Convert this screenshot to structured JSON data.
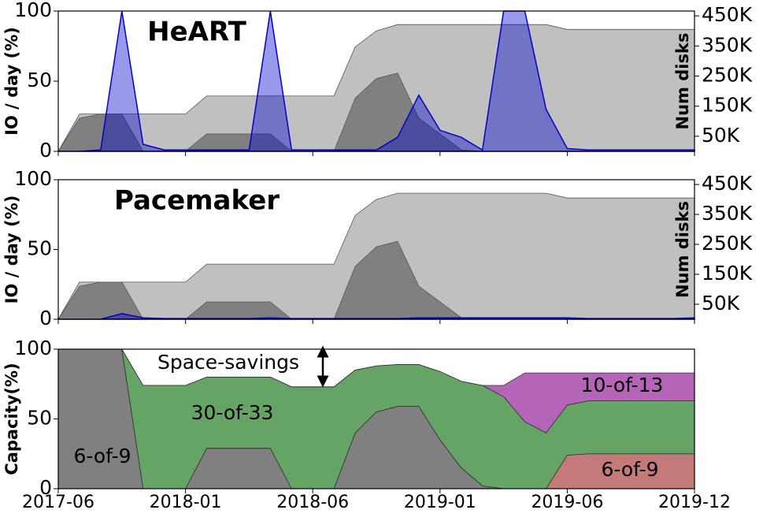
{
  "chart_data": [
    {
      "type": "area",
      "title": "HeART",
      "ylabel": "IO / day (%)",
      "y2label": "Num disks",
      "ylim": [
        0,
        100
      ],
      "yticks": [
        0,
        50,
        100
      ],
      "y2lim": [
        0,
        466000
      ],
      "y2ticks": [
        {
          "value": 50000,
          "label": "50K"
        },
        {
          "value": 150000,
          "label": "150K"
        },
        {
          "value": 250000,
          "label": "250K"
        },
        {
          "value": 350000,
          "label": "350K"
        },
        {
          "value": 450000,
          "label": "450K"
        }
      ],
      "series": [
        {
          "color": "#c0c0c0",
          "axis": "y2",
          "values": [
            0,
            124000,
            124000,
            124000,
            124000,
            124000,
            124000,
            184000,
            184000,
            184000,
            184000,
            184000,
            184000,
            184000,
            347000,
            400000,
            421000,
            421000,
            421000,
            421000,
            421000,
            421000,
            421000,
            421000,
            405000,
            405000,
            405000,
            405000,
            405000,
            405000,
            405000
          ]
        },
        {
          "color": "#808080",
          "axis": "y2",
          "values": [
            0,
            110000,
            124000,
            124000,
            0,
            0,
            0,
            58000,
            58000,
            58000,
            58000,
            0,
            0,
            0,
            176000,
            242000,
            260000,
            110000,
            58000,
            5000,
            0,
            0,
            0,
            0,
            0,
            0,
            0,
            0,
            0,
            0,
            0
          ]
        },
        {
          "color": "#0000cc",
          "values": [
            0,
            0,
            1,
            100,
            5,
            1,
            1,
            1,
            1,
            1,
            100,
            1,
            1,
            1,
            1,
            1,
            10,
            40,
            15,
            10,
            1,
            100,
            100,
            30,
            2,
            1,
            1,
            1,
            1,
            1,
            1
          ]
        }
      ]
    },
    {
      "type": "area",
      "title": "Pacemaker",
      "ylabel": "IO / day (%)",
      "y2label": "Num disks",
      "ylim": [
        0,
        100
      ],
      "yticks": [
        0,
        50,
        100
      ],
      "y2lim": [
        0,
        466000
      ],
      "y2ticks": [
        {
          "value": 50000,
          "label": "50K"
        },
        {
          "value": 150000,
          "label": "150K"
        },
        {
          "value": 250000,
          "label": "250K"
        },
        {
          "value": 350000,
          "label": "350K"
        },
        {
          "value": 450000,
          "label": "450K"
        }
      ],
      "series": [
        {
          "color": "#c0c0c0",
          "axis": "y2",
          "values": [
            0,
            124000,
            124000,
            124000,
            124000,
            124000,
            124000,
            184000,
            184000,
            184000,
            184000,
            184000,
            184000,
            184000,
            347000,
            400000,
            421000,
            421000,
            421000,
            421000,
            421000,
            421000,
            421000,
            421000,
            405000,
            405000,
            405000,
            405000,
            405000,
            405000,
            405000
          ]
        },
        {
          "color": "#808080",
          "axis": "y2",
          "values": [
            0,
            110000,
            124000,
            124000,
            0,
            0,
            0,
            58000,
            58000,
            58000,
            58000,
            0,
            0,
            0,
            176000,
            242000,
            260000,
            110000,
            58000,
            5000,
            0,
            0,
            0,
            0,
            0,
            0,
            0,
            0,
            0,
            0,
            0
          ]
        },
        {
          "color": "#0000cc",
          "values": [
            0,
            0,
            0,
            4,
            1,
            0.5,
            0.5,
            0.5,
            0.5,
            0.5,
            1,
            0.5,
            0.5,
            0.5,
            0.5,
            0.5,
            0.5,
            1,
            1,
            1,
            1,
            1,
            1,
            1,
            1,
            0.5,
            0.5,
            0.5,
            0.5,
            0.5,
            1
          ]
        }
      ]
    },
    {
      "type": "stacked-area",
      "ylabel": "Capacity(%)",
      "annotation": "Space-savings",
      "categories": [
        "2017-06",
        null,
        null,
        null,
        null,
        null,
        "2018-01",
        null,
        null,
        null,
        null,
        null,
        "2018-06",
        null,
        null,
        null,
        null,
        null,
        "2019-01",
        null,
        null,
        null,
        null,
        null,
        "2019-06",
        null,
        null,
        null,
        null,
        null,
        "2019-12"
      ],
      "ylim": [
        0,
        100
      ],
      "yticks": [
        0,
        50,
        100
      ],
      "series": [
        {
          "name": "6-of-9",
          "color": "#808080",
          "values": [
            100,
            100,
            100,
            100,
            0,
            0,
            0,
            29,
            29,
            29,
            29,
            0,
            0,
            0,
            40,
            55,
            59,
            59,
            35,
            15,
            2,
            0,
            0,
            0,
            0,
            0,
            0,
            0,
            0,
            0,
            0
          ]
        },
        {
          "name": "6-of-9",
          "color": "#c47a78",
          "values": [
            0,
            0,
            0,
            0,
            0,
            0,
            0,
            0,
            0,
            0,
            0,
            0,
            0,
            0,
            0,
            0,
            0,
            0,
            0,
            0,
            0,
            0,
            0,
            0,
            24,
            25,
            25,
            25,
            25,
            25,
            25
          ]
        },
        {
          "name": "30-of-33",
          "color": "#66a466",
          "values": [
            0,
            0,
            0,
            0,
            74,
            74,
            74,
            51,
            51,
            51,
            51,
            73,
            73,
            73,
            45,
            33,
            30,
            30,
            49,
            62,
            72,
            66,
            48,
            40,
            36,
            38,
            38,
            38,
            38,
            38,
            38
          ]
        },
        {
          "name": "10-of-13",
          "color": "#b565b8",
          "values": [
            0,
            0,
            0,
            0,
            0,
            0,
            0,
            0,
            0,
            0,
            0,
            0,
            0,
            0,
            0,
            0,
            0,
            0,
            0,
            0,
            0,
            8,
            35,
            43,
            23,
            20,
            20,
            20,
            20,
            20,
            20
          ]
        }
      ]
    }
  ]
}
